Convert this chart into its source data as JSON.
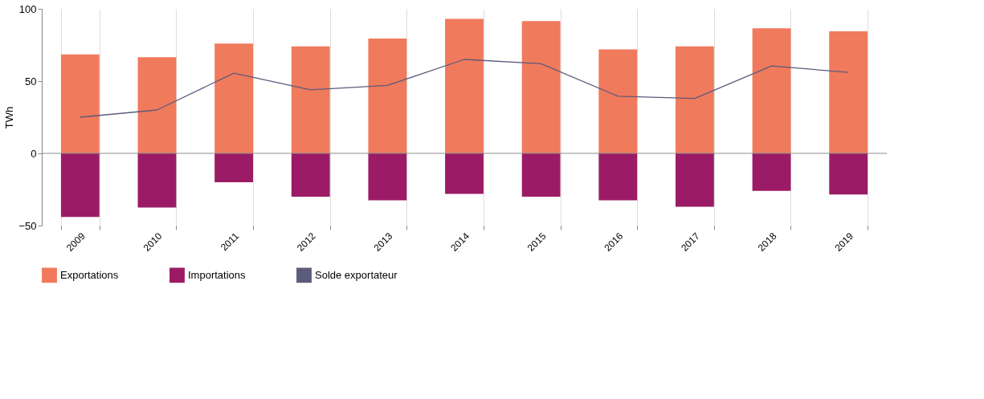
{
  "chart_data": {
    "type": "bar",
    "ylabel": "TWh",
    "categories": [
      "2009",
      "2010",
      "2011",
      "2012",
      "2013",
      "2014",
      "2015",
      "2016",
      "2017",
      "2018",
      "2019"
    ],
    "series": [
      {
        "name": "Exportations",
        "color": "#f07a5c",
        "values": [
          68.5,
          66.5,
          76,
          74,
          79.5,
          93,
          91.5,
          72,
          74,
          86.5,
          84.5
        ]
      },
      {
        "name": "Importations",
        "color": "#9b1b66",
        "values": [
          -44,
          -37.5,
          -20,
          -30,
          -32.5,
          -28,
          -30,
          -32.5,
          -37,
          -26,
          -28.5
        ]
      },
      {
        "name": "Solde exportateur",
        "type": "line",
        "color": "#5b5b7c",
        "values": [
          25,
          30,
          55.5,
          44,
          47,
          65,
          62,
          39.5,
          38,
          60.5,
          56
        ]
      }
    ],
    "ylim": [
      -50,
      100
    ],
    "yticks": [
      -50,
      0,
      50,
      100
    ],
    "ref_lines": [
      {
        "axis": "y",
        "value": 0,
        "color": "#8c8c8c"
      }
    ],
    "stacked": true,
    "grid": "x",
    "legend": "bottom"
  }
}
